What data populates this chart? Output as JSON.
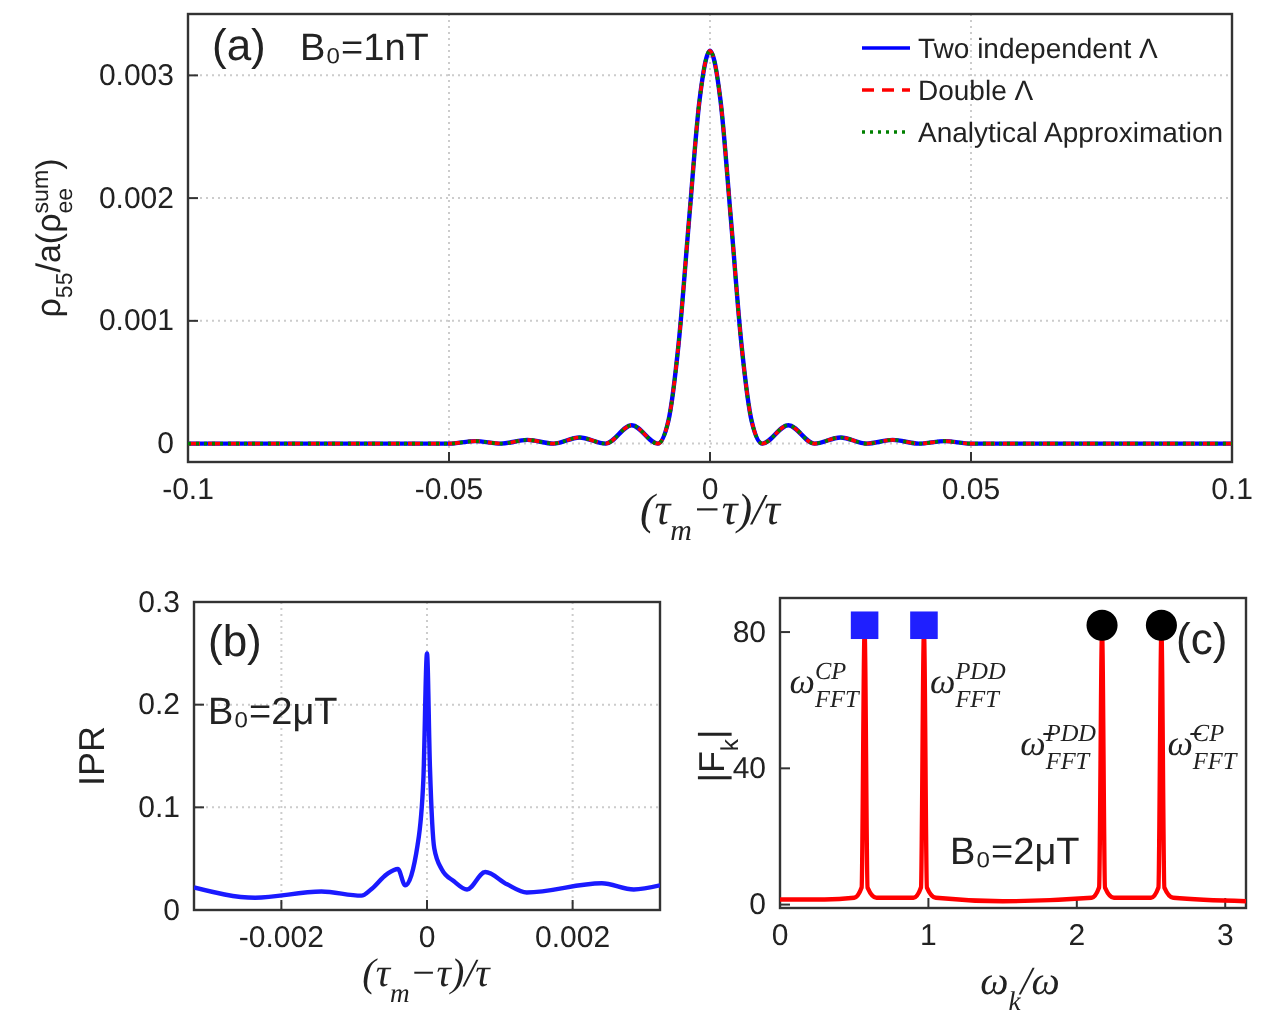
{
  "chart_data": [
    {
      "type": "line",
      "xlabel": "(τ$_{m}$−τ)/τ",
      "ylabel": "ρ$_{55}$/a(ρ$_{ee}$$^{sum}$)",
      "xlim": [
        -0.1,
        0.1
      ],
      "ylim": [
        -0.00015,
        0.0035
      ],
      "xticks": [
        -0.1,
        -0.05,
        0,
        0.05,
        0.1
      ],
      "yticks": [
        0,
        0.001,
        0.002,
        0.003
      ],
      "grid": true,
      "legend": "top right",
      "annotations": [
        "(a)",
        "B₀=1nT"
      ],
      "x": [
        -0.1,
        -0.08,
        -0.06,
        -0.055,
        -0.05,
        -0.045,
        -0.04,
        -0.035,
        -0.03,
        -0.025,
        -0.02,
        -0.015,
        -0.01,
        -0.008,
        -0.006,
        -0.004,
        -0.002,
        0,
        0.002,
        0.004,
        0.006,
        0.008,
        0.01,
        0.015,
        0.02,
        0.025,
        0.03,
        0.035,
        0.04,
        0.045,
        0.05,
        0.055,
        0.06,
        0.08,
        0.1
      ],
      "series": [
        {
          "name": "Two independent Λ",
          "color": "#0000ff",
          "line_style": "solid",
          "values": [
            0,
            0,
            0,
            0,
            0,
            2e-05,
            0,
            3e-05,
            0,
            5e-05,
            0,
            0.00015,
            0,
            0.00018,
            0.00082,
            0.00183,
            0.0028,
            0.0032,
            0.0028,
            0.00183,
            0.00082,
            0.00018,
            0,
            0.00015,
            0,
            5e-05,
            0,
            3e-05,
            0,
            2e-05,
            0,
            0,
            0,
            0,
            0
          ]
        },
        {
          "name": "Double Λ",
          "color": "#ff0000",
          "line_style": "dashed",
          "values": [
            0,
            0,
            0,
            0,
            0,
            2e-05,
            0,
            3e-05,
            0,
            5e-05,
            0,
            0.00015,
            0,
            0.00018,
            0.00082,
            0.00183,
            0.0028,
            0.0032,
            0.0028,
            0.00183,
            0.00082,
            0.00018,
            0,
            0.00015,
            0,
            5e-05,
            0,
            3e-05,
            0,
            2e-05,
            0,
            0,
            0,
            0,
            0
          ]
        },
        {
          "name": "Analytical Approximation",
          "color": "#008000",
          "line_style": "dotted",
          "values": [
            0,
            0,
            0,
            0,
            0,
            2e-05,
            0,
            3e-05,
            0,
            5e-05,
            0,
            0.00015,
            0,
            0.00018,
            0.00082,
            0.00183,
            0.0028,
            0.0032,
            0.0028,
            0.00183,
            0.00082,
            0.00018,
            0,
            0.00015,
            0,
            5e-05,
            0,
            3e-05,
            0,
            2e-05,
            0,
            0,
            0,
            0,
            0
          ]
        }
      ]
    },
    {
      "type": "line",
      "xlabel": "(τ$_{m}$−τ)/τ",
      "ylabel": "IPR",
      "xlim": [
        -0.0032,
        0.0032
      ],
      "ylim": [
        0,
        0.3
      ],
      "xticks": [
        -0.002,
        0,
        0.002
      ],
      "yticks": [
        0,
        0.1,
        0.2,
        0.3
      ],
      "grid": true,
      "annotations": [
        "(b)",
        "B₀=2μT"
      ],
      "x": [
        -0.0032,
        -0.00236,
        -0.00145,
        -0.0009,
        -0.00077,
        -0.00055,
        -0.0004,
        -0.0003,
        -0.00013,
        -5e-05,
        0,
        4e-05,
        0.0001,
        0.0002,
        0.00037,
        0.00055,
        0.0008,
        0.0011,
        0.00137,
        0.0024,
        0.00284,
        0.0032
      ],
      "series": [
        {
          "color": "#1a1aff",
          "line_style": "solid",
          "values": [
            0.022,
            0.012,
            0.018,
            0.014,
            0.02,
            0.035,
            0.04,
            0.024,
            0.063,
            0.127,
            0.25,
            0.14,
            0.06,
            0.04,
            0.028,
            0.02,
            0.037,
            0.025,
            0.017,
            0.026,
            0.02,
            0.024
          ]
        }
      ]
    },
    {
      "type": "line",
      "xlabel": "ω$_{k}$/ω",
      "ylabel": "|F$_{k}$|",
      "xlim": [
        0,
        3.14
      ],
      "ylim": [
        -1,
        90
      ],
      "xticks": [
        0,
        1,
        2,
        3
      ],
      "yticks": [
        0,
        40,
        80
      ],
      "grid": false,
      "annotations": [
        "B₀=2μT",
        "(c)",
        {
          "text": "ω$_{FFT}$$^{CP}$",
          "x": 0.57,
          "y": 62
        },
        {
          "text": "ω$_{FFT}$$^{PDD}$",
          "x": 0.97,
          "y": 62
        },
        {
          "text": "ω̄$_{FFT}$$^{PDD}$",
          "x": 2.17,
          "y": 44
        },
        {
          "text": "ω̄$_{FFT}$$^{CP}$",
          "x": 2.57,
          "y": 44
        }
      ],
      "series": [
        {
          "color": "#ff0000",
          "line_style": "solid",
          "x": [
            0,
            0.3,
            0.5,
            0.55,
            0.57,
            0.59,
            0.65,
            0.9,
            0.95,
            0.97,
            0.99,
            1.05,
            1.5,
            2.1,
            2.15,
            2.17,
            2.19,
            2.25,
            2.5,
            2.55,
            2.57,
            2.59,
            2.65,
            3.14
          ],
          "values": [
            1.5,
            1.5,
            2,
            5,
            80,
            5,
            2,
            2,
            5,
            80,
            5,
            2,
            1,
            2,
            5,
            80,
            5,
            2,
            2,
            5,
            80,
            5,
            2,
            1
          ]
        },
        {
          "type": "scatter",
          "marker": "square",
          "color": "#1f1fff",
          "x": [
            0.57,
            0.97
          ],
          "values": [
            82,
            82
          ]
        },
        {
          "type": "scatter",
          "marker": "circle",
          "color": "#000000",
          "x": [
            2.17,
            2.57
          ],
          "values": [
            82,
            82
          ]
        }
      ]
    }
  ]
}
